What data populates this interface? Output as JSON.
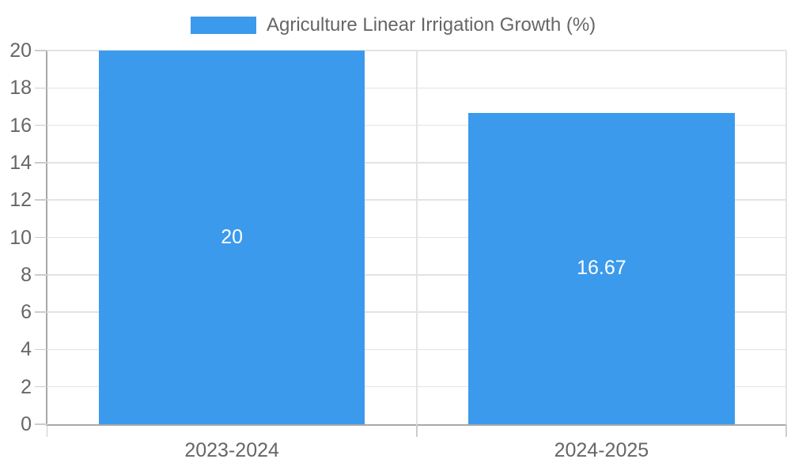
{
  "chart_data": {
    "type": "bar",
    "title": "",
    "legend_label": "Agriculture Linear Irrigation Growth (%)",
    "legend_position": "top",
    "categories": [
      "2023-2024",
      "2024-2025"
    ],
    "values": [
      20,
      16.67
    ],
    "value_labels": [
      "20",
      "16.67"
    ],
    "series": [
      {
        "name": "Agriculture Linear Irrigation Growth (%)",
        "values": [
          20,
          16.67
        ]
      }
    ],
    "ylim": [
      0,
      20
    ],
    "yticks": [
      0,
      2,
      4,
      6,
      8,
      10,
      12,
      14,
      16,
      18,
      20
    ],
    "xlabel": "",
    "ylabel": "",
    "grid": true,
    "colors": {
      "bar": "#3b9aec",
      "grid": "#e3e3e3",
      "tick": "#cccccc",
      "axis": "#a8a8a8",
      "text": "#666666",
      "value_text": "#ffffff",
      "background": "#ffffff"
    }
  }
}
